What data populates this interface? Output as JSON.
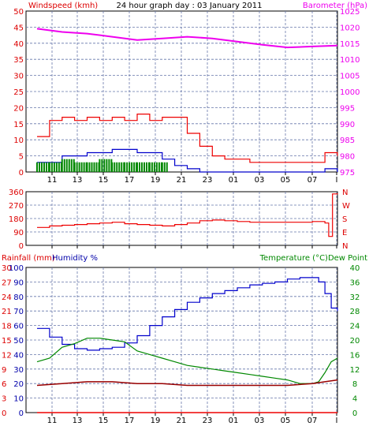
{
  "chart_data": [
    {
      "type": "line",
      "title": "24 hour graph day : 03 January 2011",
      "left_axis_label": "Windspeed (kmh)",
      "right_axis_label": "Barometer (hPa)",
      "x_ticks": [
        "11",
        "13",
        "15",
        "17",
        "19",
        "21",
        "23",
        "01",
        "03",
        "05",
        "07",
        "I"
      ],
      "left_ylim": [
        0,
        50
      ],
      "left_ticks": [
        "50",
        "45",
        "40",
        "35",
        "30",
        "25",
        "20",
        "15",
        "10",
        "5",
        "0"
      ],
      "right_ylim": [
        975,
        1025
      ],
      "right_ticks": [
        "1025",
        "1020",
        "1015",
        "1010",
        "1005",
        "1000",
        "995",
        "990",
        "985",
        "980",
        "975"
      ],
      "grid": true,
      "colors": {
        "left_axis": "#dd0000",
        "right_axis": "#ee00ee",
        "gust": "#ee0000",
        "avg": "#0000cc",
        "calm": "#008800",
        "barometer": "#ee00ee"
      },
      "series": [
        {
          "key": "barometer",
          "axis": "right",
          "x": [
            0,
            2,
            4,
            6,
            8,
            10,
            12,
            14,
            16,
            18,
            20,
            22,
            24
          ],
          "values": [
            1019.5,
            1018.5,
            1018,
            1017,
            1016,
            1016.5,
            1017,
            1016.5,
            1015.5,
            1014.5,
            1013.7,
            1014,
            1014.3
          ]
        },
        {
          "key": "gust",
          "axis": "left",
          "x": [
            0,
            1,
            2,
            3,
            4,
            5,
            6,
            7,
            8,
            9,
            10,
            11,
            12,
            13,
            14,
            15,
            16,
            17,
            18,
            19,
            20,
            21,
            22,
            23,
            24
          ],
          "values": [
            11,
            16,
            17,
            16,
            17,
            16,
            17,
            16,
            18,
            16,
            17,
            17,
            12,
            8,
            5,
            4,
            4,
            3,
            3,
            3,
            3,
            3,
            3,
            6,
            5
          ]
        },
        {
          "key": "avg",
          "axis": "left",
          "x": [
            0,
            2,
            4,
            6,
            8,
            10,
            11,
            12,
            13,
            14,
            16,
            18,
            20,
            22,
            23,
            24
          ],
          "values": [
            3,
            5,
            6,
            7,
            6,
            4,
            2,
            1,
            0,
            0,
            0,
            0,
            0,
            0,
            1,
            0
          ]
        },
        {
          "key": "calm",
          "axis": "left",
          "x": [
            0,
            1,
            2,
            3,
            4,
            5,
            6,
            7,
            8,
            9,
            10,
            10.5
          ],
          "values": [
            3,
            3,
            4,
            3,
            3,
            4,
            3,
            3,
            3,
            3,
            3,
            3
          ]
        }
      ]
    },
    {
      "type": "line",
      "left_ylim": [
        0,
        360
      ],
      "left_ticks": [
        "360",
        "270",
        "180",
        "90",
        "0"
      ],
      "right_ticks": [
        "N",
        "W",
        "S",
        "E",
        "N"
      ],
      "grid": true,
      "colors": {
        "direction": "#ee0000"
      },
      "series": [
        {
          "key": "direction",
          "x": [
            0,
            1,
            2,
            3,
            4,
            5,
            6,
            7,
            8,
            9,
            10,
            11,
            12,
            13,
            14,
            15,
            16,
            17,
            18,
            19,
            20,
            21,
            22,
            23,
            23.3,
            23.6,
            24
          ],
          "values": [
            120,
            130,
            135,
            140,
            145,
            150,
            155,
            145,
            140,
            135,
            130,
            140,
            150,
            165,
            170,
            165,
            160,
            155,
            155,
            155,
            155,
            155,
            160,
            150,
            60,
            345,
            350
          ]
        }
      ]
    },
    {
      "type": "line",
      "left_axis_label": "Rainfall (mm)",
      "humidity_label": "Humidity %",
      "right_axis_label": "Temperature (°C)Dew Point",
      "x_ticks": [
        "11",
        "13",
        "15",
        "17",
        "19",
        "21",
        "23",
        "01",
        "03",
        "05",
        "07",
        "I"
      ],
      "rain_ticks": [
        "30",
        "27",
        "24",
        "21",
        "18",
        "15",
        "12",
        "9",
        "6",
        "3",
        "0"
      ],
      "humidity_ticks": [
        "100",
        "90",
        "80",
        "70",
        "60",
        "50",
        "40",
        "30",
        "20",
        "10",
        "0"
      ],
      "right_ticks": [
        "40",
        "36",
        "32",
        "28",
        "24",
        "20",
        "16",
        "12",
        "8",
        "4",
        "0"
      ],
      "humidity_ylim": [
        0,
        100
      ],
      "temp_ylim": [
        0,
        40
      ],
      "grid": true,
      "colors": {
        "left_axis": "#dd0000",
        "humidity_label": "#0000aa",
        "right_axis": "#008800",
        "humidity": "#0000cc",
        "temperature": "#008800",
        "dew_point": "#990000",
        "rainfall": "#ee0000"
      },
      "series": [
        {
          "key": "humidity",
          "axis": "humidity",
          "x": [
            0,
            1,
            2,
            3,
            4,
            5,
            6,
            7,
            8,
            9,
            10,
            11,
            12,
            13,
            14,
            15,
            16,
            17,
            18,
            19,
            20,
            21,
            22,
            22.5,
            23,
            23.5,
            24
          ],
          "values": [
            58,
            52,
            47,
            44,
            43,
            44,
            45,
            48,
            53,
            60,
            66,
            71,
            76,
            79,
            82,
            84,
            86,
            88,
            89,
            90,
            92,
            93,
            93,
            90,
            82,
            72,
            70
          ]
        },
        {
          "key": "temperature",
          "axis": "temp",
          "x": [
            0,
            1,
            2,
            3,
            4,
            5,
            6,
            7,
            8,
            9,
            10,
            11,
            12,
            13,
            14,
            15,
            16,
            17,
            18,
            19,
            20,
            21,
            22,
            22.5,
            23,
            23.5,
            24
          ],
          "values": [
            14,
            15,
            18,
            19,
            20.5,
            20.5,
            20,
            19.5,
            17,
            16,
            15,
            14,
            13,
            12.5,
            12,
            11.5,
            11,
            10.5,
            10,
            9.5,
            9,
            8,
            8,
            8.5,
            11,
            14,
            15
          ]
        },
        {
          "key": "dew_point",
          "axis": "temp",
          "x": [
            0,
            2,
            4,
            6,
            8,
            10,
            12,
            14,
            16,
            18,
            20,
            22,
            23,
            24
          ],
          "values": [
            7.5,
            8,
            8.5,
            8.5,
            8,
            8,
            7.5,
            7.5,
            7.5,
            7.5,
            7.5,
            8,
            8.5,
            9
          ]
        },
        {
          "key": "rainfall",
          "axis": "rain",
          "x": [
            0,
            24
          ],
          "values": [
            0,
            0
          ]
        }
      ]
    }
  ]
}
